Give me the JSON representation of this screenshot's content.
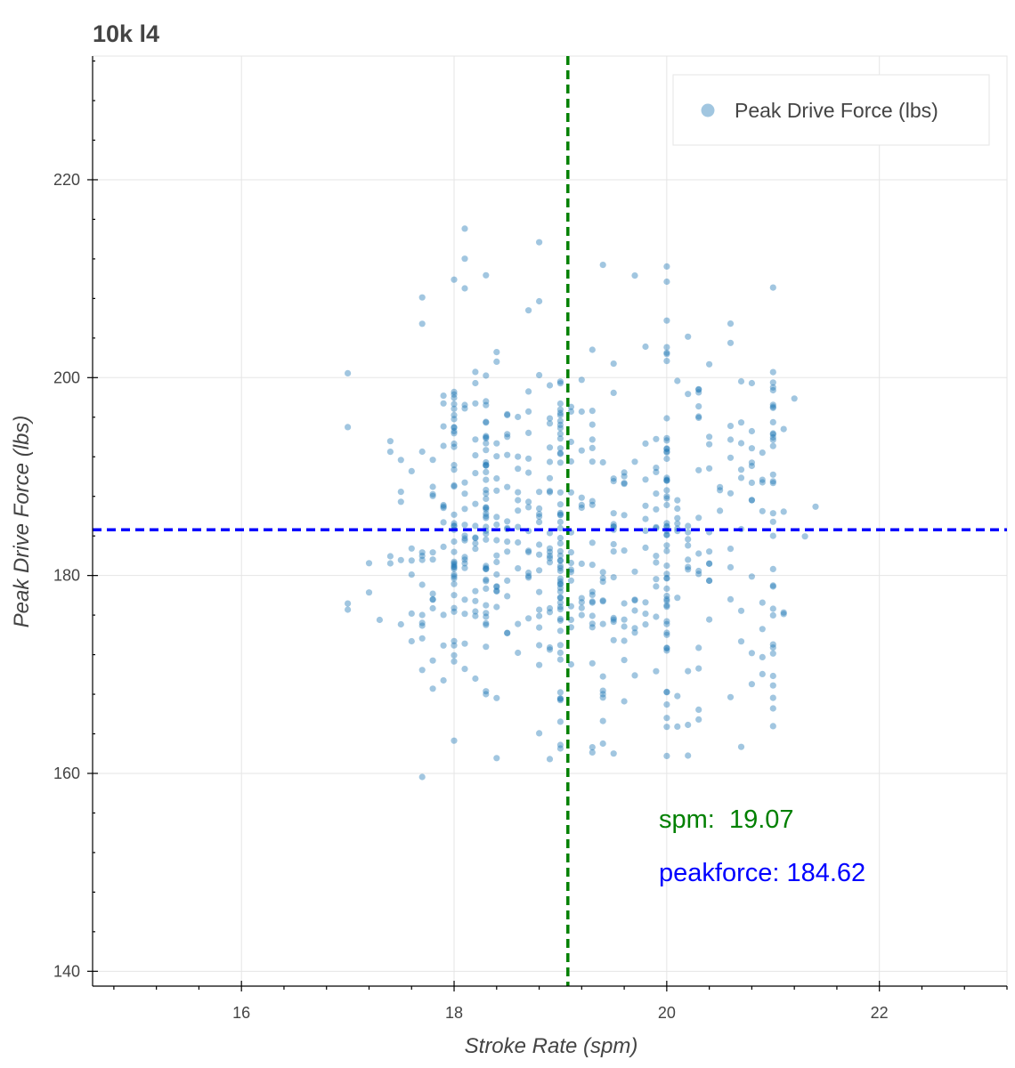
{
  "chart_data": {
    "type": "scatter",
    "title": "10k l4",
    "xlabel": "Stroke Rate (spm)",
    "ylabel": "Peak Drive Force (lbs)",
    "xlim": [
      14.6,
      23.2
    ],
    "ylim": [
      138.5,
      232.5
    ],
    "x_ticks": [
      "16",
      "18",
      "20",
      "22"
    ],
    "y_ticks": [
      "140",
      "160",
      "180",
      "200",
      "220"
    ],
    "grid": true,
    "legend": {
      "position": "top-right",
      "entries": [
        "Peak Drive Force (lbs)"
      ]
    },
    "series": [
      {
        "name": "Peak Drive Force (lbs)",
        "color": "#1f77b4",
        "x_values": [
          17.0,
          17.1,
          17.2,
          17.3,
          17.4,
          17.5,
          17.6,
          17.7,
          17.8,
          17.9,
          18.0,
          18.1,
          18.2,
          18.3,
          18.4,
          18.5,
          18.6,
          18.7,
          18.8,
          18.9,
          19.0,
          19.1,
          19.2,
          19.3,
          19.4,
          19.5,
          19.6,
          19.7,
          19.8,
          19.9,
          20.0,
          20.1,
          20.2,
          20.3,
          20.4,
          20.5,
          20.6,
          20.7,
          20.8,
          20.9,
          21.0,
          21.1,
          21.2,
          21.3,
          21.4
        ],
        "x_weights": [
          1,
          1,
          2,
          2,
          3,
          4,
          5,
          7,
          9,
          11,
          50,
          14,
          16,
          30,
          13,
          12,
          12,
          11,
          13,
          14,
          50,
          13,
          12,
          15,
          13,
          12,
          11,
          10,
          11,
          14,
          45,
          10,
          9,
          10,
          8,
          7,
          6,
          6,
          6,
          5,
          30,
          3,
          2,
          1,
          1
        ],
        "y_mean": 184.62,
        "y_sd": 10.5,
        "y_min": 158.5,
        "y_max": 217.0,
        "count": 640
      }
    ],
    "reference_lines": [
      {
        "orientation": "vertical",
        "value": 19.07,
        "color": "#008000"
      },
      {
        "orientation": "horizontal",
        "value": 184.62,
        "color": "#0000ff"
      }
    ],
    "annotations": [
      {
        "label": "spm:  19.07",
        "color": "#008000"
      },
      {
        "label": "peakforce: 184.62",
        "color": "#0000ff"
      }
    ]
  }
}
